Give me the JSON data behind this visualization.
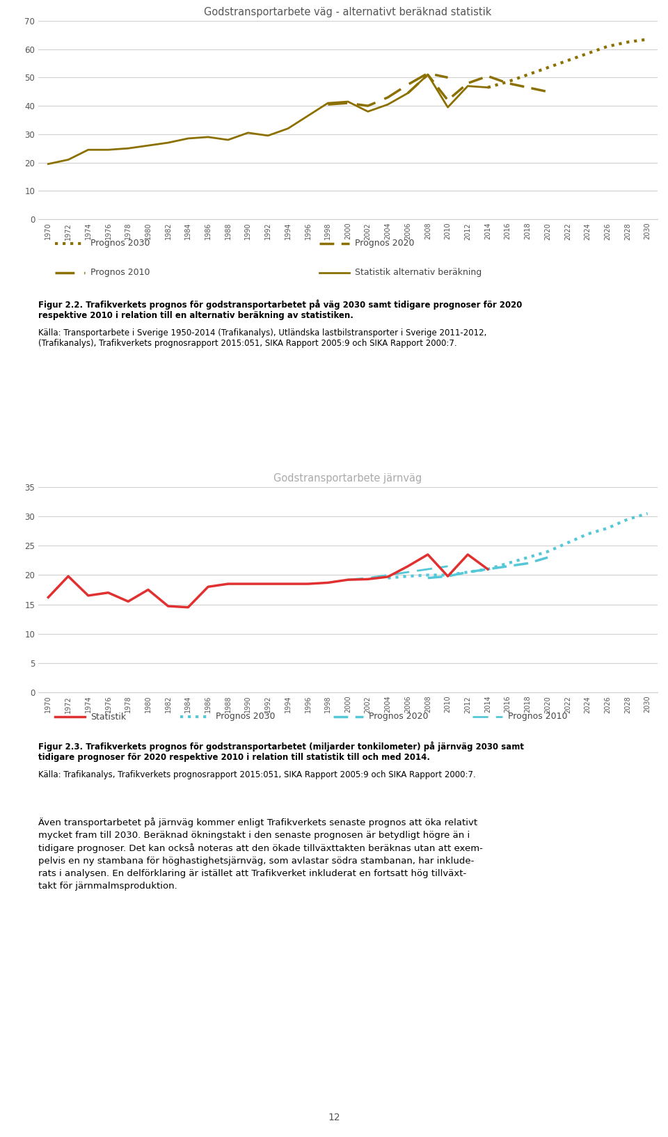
{
  "chart1": {
    "title": "Godstransportarbete väg - alternativt beräknad statistik",
    "ylim": [
      0,
      70
    ],
    "yticks": [
      0,
      10,
      20,
      30,
      40,
      50,
      60,
      70
    ],
    "color": "#8B7000",
    "stat_years": [
      1970,
      1972,
      1974,
      1976,
      1978,
      1980,
      1982,
      1984,
      1986,
      1988,
      1990,
      1992,
      1994,
      1996,
      1998,
      2000,
      2002,
      2004,
      2006,
      2008,
      2010,
      2012,
      2014
    ],
    "stat_values": [
      19.5,
      21.0,
      24.5,
      24.5,
      25.0,
      26.0,
      27.0,
      28.5,
      29.0,
      28.0,
      30.5,
      29.5,
      32.0,
      36.5,
      41.0,
      41.5,
      38.0,
      40.5,
      44.5,
      51.0,
      39.5,
      47.0,
      46.5
    ],
    "prog2030_years": [
      2014,
      2016,
      2018,
      2020,
      2022,
      2024,
      2026,
      2028,
      2030
    ],
    "prog2030_values": [
      46.5,
      48.5,
      51.0,
      53.5,
      56.0,
      58.5,
      61.0,
      62.5,
      63.5
    ],
    "prog2020_years": [
      2006,
      2008,
      2010,
      2012,
      2014,
      2016,
      2018,
      2020
    ],
    "prog2020_values": [
      44.5,
      51.0,
      42.0,
      48.0,
      50.5,
      48.0,
      46.5,
      45.0
    ],
    "prog2010_years": [
      1998,
      2000,
      2002,
      2004,
      2006,
      2008,
      2010
    ],
    "prog2010_values": [
      40.5,
      41.0,
      40.0,
      43.0,
      47.5,
      51.5,
      50.0
    ]
  },
  "chart2": {
    "title": "Godstransportarbete järnväg",
    "ylim": [
      0.0,
      35.0
    ],
    "yticks": [
      0.0,
      5.0,
      10.0,
      15.0,
      20.0,
      25.0,
      30.0,
      35.0
    ],
    "stat_color": "#e03030",
    "prog_color": "#55c8d8",
    "stat_years": [
      1970,
      1972,
      1974,
      1976,
      1978,
      1980,
      1982,
      1984,
      1986,
      1988,
      1990,
      1992,
      1994,
      1996,
      1998,
      2000,
      2002,
      2004,
      2006,
      2008,
      2010,
      2012,
      2014
    ],
    "stat_values": [
      16.2,
      19.8,
      16.5,
      17.0,
      15.5,
      17.5,
      14.7,
      14.5,
      18.0,
      18.5,
      18.5,
      18.5,
      18.5,
      18.5,
      18.7,
      19.2,
      19.3,
      19.7,
      21.5,
      23.5,
      19.8,
      23.5,
      21.0
    ],
    "prog2030_years": [
      2004,
      2006,
      2008,
      2010,
      2012,
      2014,
      2016,
      2018,
      2020,
      2022,
      2024,
      2026,
      2028,
      2030
    ],
    "prog2030_values": [
      19.5,
      19.8,
      20.0,
      20.0,
      20.5,
      21.0,
      22.0,
      23.0,
      24.0,
      25.5,
      27.0,
      28.0,
      29.5,
      30.5
    ],
    "prog2020_years": [
      2008,
      2010,
      2012,
      2014,
      2016,
      2018,
      2020
    ],
    "prog2020_values": [
      19.5,
      19.8,
      20.5,
      21.0,
      21.5,
      22.0,
      23.0
    ],
    "prog2010_years": [
      2000,
      2002,
      2004,
      2006,
      2008,
      2010
    ],
    "prog2010_values": [
      19.2,
      19.5,
      20.0,
      20.5,
      21.0,
      21.5
    ]
  },
  "legend1": {
    "prog2030_label": "Prognos 2030",
    "prog2020_label": "Prognos 2020",
    "prog2010_label": "Prognos 2010",
    "stat_label": "Statistik alternativ beräkning"
  },
  "legend2": {
    "stat_label": "Statistik",
    "prog2030_label": "Prognos 2030",
    "prog2020_label": "Prognos 2020",
    "prog2010_label": "Prognos 2010"
  },
  "fig22_bold": "Figur 2.2. Trafikverkets prognos för godstransportarbetet på väg 2030 samt tidigare prognoser för 2020\nrespektive 2010 i relation till en alternativ beräkning av statistiken.",
  "fig22_normal": "Källa: Transportarbete i Sverige 1950-2014 (Trafikanalys), Utländska lastbilstransporter i Sverige 2011-2012,\n(Trafikanalys), Trafikverkets prognosrapport 2015:051, SIKA Rapport 2005:9 och SIKA Rapport 2000:7.",
  "fig23_bold": "Figur 2.3. Trafikverkets prognos för godstransportarbetet (miljarder tonkilometer) på järnväg 2030 samt\ntidigare prognoser för 2020 respektive 2010 i relation till statistik till och med 2014.",
  "fig23_normal_bold_part": "Källa: Trafikanalys,",
  "fig23_normal": "Källa: Trafikanalys, Trafikverkets prognosrapport 2015:051, SIKA Rapport 2005:9 och SIKA Rapport 2000:7.",
  "body_line1": "Även transportarbetet på järnväg kommer enligt Trafikverkets senaste prognos att öka relativt",
  "body_line2": "mycket fram till 2030. Beräknad ökningstakt i den senaste prognosen är betydligt högre än i",
  "body_line3": "tidigare prognoser. Det kan också noteras att den ökade tillväxttakten beräknas utan att exem-",
  "body_line4": "pelvis en ny stambana för höghastighetsjärnväg, som avlastar södra stambanan, har inklude-",
  "body_line5": "rats i analysen. En delförklaring är istället att Trafikverket inkluderat en fortsatt hög tillväxt-",
  "body_line6": "takt för järnmalmsproduktion.",
  "page_number": "12",
  "background_color": "#ffffff",
  "grid_color": "#d0d0d0",
  "chart_color": "#8B7000"
}
